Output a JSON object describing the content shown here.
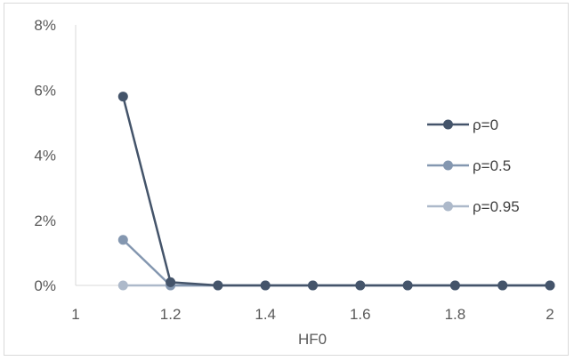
{
  "chart_data": {
    "type": "line",
    "title": "",
    "xlabel": "HF0",
    "ylabel": "",
    "x_axis": {
      "min": 1,
      "max": 2,
      "ticks": [
        1,
        1.2,
        1.4,
        1.6,
        1.8,
        2
      ],
      "tick_labels": [
        "1",
        "1.2",
        "1.4",
        "1.6",
        "1.8",
        "2"
      ]
    },
    "y_axis": {
      "min": 0,
      "max": 0.08,
      "ticks": [
        0,
        0.02,
        0.04,
        0.06,
        0.08
      ],
      "tick_labels": [
        "0%",
        "2%",
        "4%",
        "6%",
        "8%"
      ]
    },
    "grid": false,
    "legend_position": "right",
    "x": [
      1.1,
      1.2,
      1.3,
      1.4,
      1.5,
      1.6,
      1.7,
      1.8,
      1.9,
      2.0
    ],
    "series": [
      {
        "name": "ρ=0",
        "color": "#44546a",
        "values": [
          0.058,
          0.001,
          0,
          0,
          0,
          0,
          0,
          0,
          0,
          0
        ]
      },
      {
        "name": "ρ=0.5",
        "color": "#8497b0",
        "values": [
          0.014,
          0,
          0,
          0,
          0,
          0,
          0,
          0,
          0,
          0
        ]
      },
      {
        "name": "ρ=0.95",
        "color": "#adb9ca",
        "values": [
          0,
          0,
          0,
          0,
          0,
          0,
          0,
          0,
          0,
          0
        ]
      }
    ]
  }
}
